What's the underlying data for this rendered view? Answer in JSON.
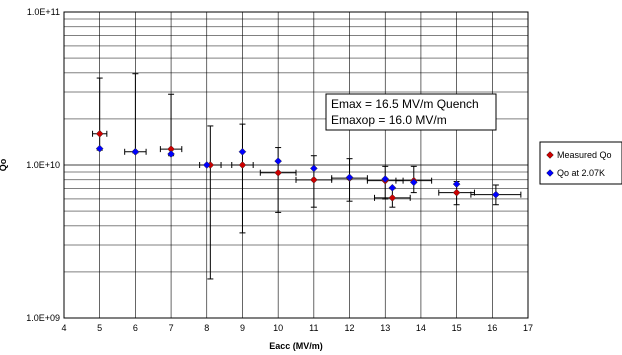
{
  "chart_data": {
    "type": "scatter",
    "title": "",
    "xlabel": "Eacc (MV/m)",
    "ylabel": "Qo",
    "xlim": [
      4,
      17
    ],
    "ylim": [
      1000000000.0,
      100000000000.0
    ],
    "y_scale": "log",
    "x_ticks": [
      "4",
      "5",
      "6",
      "7",
      "8",
      "9",
      "10",
      "11",
      "12",
      "13",
      "14",
      "15",
      "16",
      "17"
    ],
    "y_tick_labels": [
      "1.0E+09",
      "1.0E+10",
      "1.0E+11"
    ],
    "grid": true,
    "legend_position": "right",
    "annotation": [
      "Emax = 16.5 MV/m Quench",
      "Emaxop = 16.0 MV/m"
    ],
    "series": [
      {
        "name": "Measured Qo",
        "color": "#cc0000",
        "marker": "diamond",
        "points": [
          {
            "x": 5.0,
            "y": 16000000000.0,
            "xerr": 0.2,
            "ylow": 12500000000.0,
            "yhigh": 37000000000.0
          },
          {
            "x": 6.0,
            "y": 12200000000.0,
            "xerr": 0.3,
            "ylow": 12000000000.0,
            "yhigh": 39500000000.0
          },
          {
            "x": 7.0,
            "y": 12700000000.0,
            "xerr": 0.3,
            "ylow": 11500000000.0,
            "yhigh": 29000000000.0
          },
          {
            "x": 8.1,
            "y": 10000000000.0,
            "xerr": 0.3,
            "ylow": 1800000000.0,
            "yhigh": 18000000000.0
          },
          {
            "x": 9.0,
            "y": 10000000000.0,
            "xerr": 0.3,
            "ylow": 3600000000.0,
            "yhigh": 18500000000.0
          },
          {
            "x": 10.0,
            "y": 8900000000.0,
            "xerr": 0.5,
            "ylow": 4900000000.0,
            "yhigh": 13000000000.0
          },
          {
            "x": 11.0,
            "y": 8000000000.0,
            "xerr": 0.5,
            "ylow": 5300000000.0,
            "yhigh": 11500000000.0
          },
          {
            "x": 12.0,
            "y": 8200000000.0,
            "xerr": 0.5,
            "ylow": 5800000000.0,
            "yhigh": 11000000000.0
          },
          {
            "x": 13.0,
            "y": 7900000000.0,
            "xerr": 0.5,
            "ylow": 6000000000.0,
            "yhigh": 9800000000.0
          },
          {
            "x": 13.2,
            "y": 6100000000.0,
            "xerr": 0.5,
            "ylow": 5300000000.0,
            "yhigh": 7000000000.0
          },
          {
            "x": 13.8,
            "y": 7900000000.0,
            "xerr": 0.5,
            "ylow": 6600000000.0,
            "yhigh": 9800000000.0
          },
          {
            "x": 15.0,
            "y": 6600000000.0,
            "xerr": 0.5,
            "ylow": 5500000000.0,
            "yhigh": 7800000000.0
          },
          {
            "x": 16.1,
            "y": 6400000000.0,
            "xerr": 0.7,
            "ylow": 5500000000.0,
            "yhigh": 7400000000.0
          }
        ]
      },
      {
        "name": "Qo at 2.07K",
        "color": "#0000ff",
        "marker": "diamond",
        "points": [
          {
            "x": 5.0,
            "y": 12800000000.0
          },
          {
            "x": 6.0,
            "y": 12200000000.0
          },
          {
            "x": 7.0,
            "y": 11800000000.0
          },
          {
            "x": 8.0,
            "y": 10000000000.0
          },
          {
            "x": 9.0,
            "y": 12200000000.0
          },
          {
            "x": 10.0,
            "y": 10600000000.0
          },
          {
            "x": 11.0,
            "y": 9500000000.0
          },
          {
            "x": 12.0,
            "y": 8300000000.0
          },
          {
            "x": 13.0,
            "y": 8100000000.0
          },
          {
            "x": 13.2,
            "y": 7100000000.0
          },
          {
            "x": 13.8,
            "y": 7700000000.0
          },
          {
            "x": 15.0,
            "y": 7500000000.0
          },
          {
            "x": 16.1,
            "y": 6400000000.0
          }
        ]
      }
    ]
  }
}
